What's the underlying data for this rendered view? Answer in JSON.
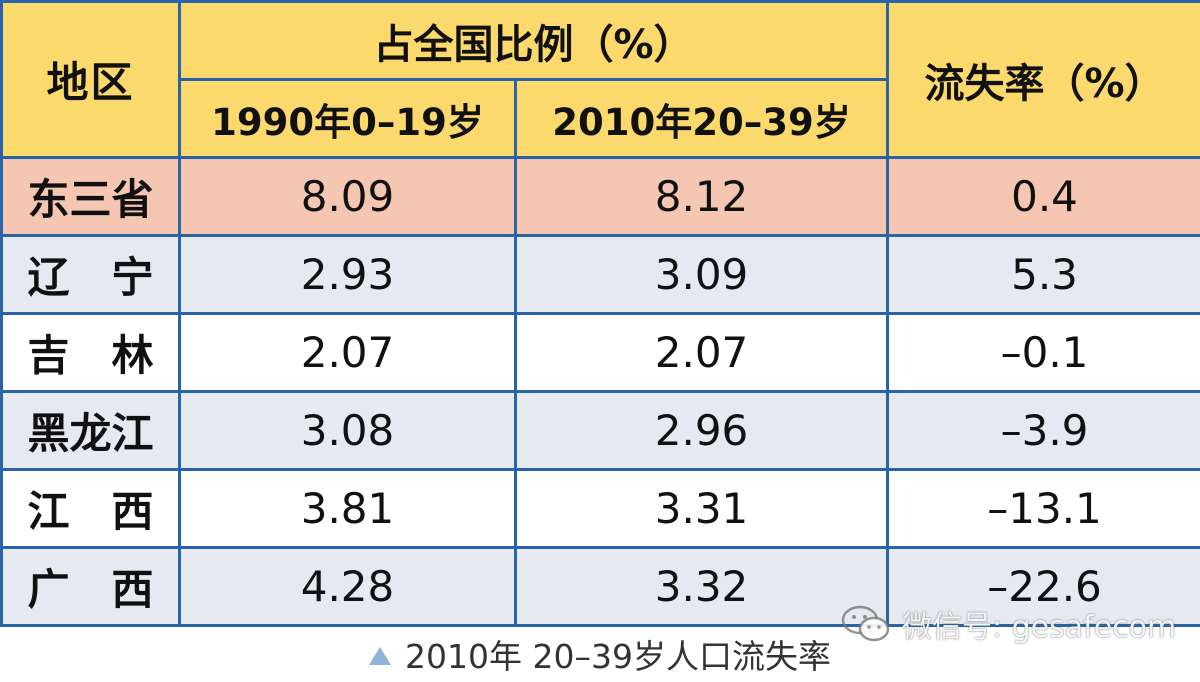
{
  "chart_data": {
    "type": "table",
    "header": {
      "region": "地区",
      "group": "占全国比例（%）",
      "col_1990": "1990年0–19岁",
      "col_2010": "2010年20–39岁",
      "loss": "流失率（%）"
    },
    "rows": [
      {
        "region": "东三省",
        "share_1990": "8.09",
        "share_2010": "8.12",
        "loss_rate": "0.4"
      },
      {
        "region": "辽　宁",
        "share_1990": "2.93",
        "share_2010": "3.09",
        "loss_rate": "5.3"
      },
      {
        "region": "吉　林",
        "share_1990": "2.07",
        "share_2010": "2.07",
        "loss_rate": "–0.1"
      },
      {
        "region": "黑龙江",
        "share_1990": "3.08",
        "share_2010": "2.96",
        "loss_rate": "–3.9"
      },
      {
        "region": "江　西",
        "share_1990": "3.81",
        "share_2010": "3.31",
        "loss_rate": "–13.1"
      },
      {
        "region": "广　西",
        "share_1990": "4.28",
        "share_2010": "3.32",
        "loss_rate": "–22.6"
      }
    ],
    "caption": "2010年 20–39岁人口流失率"
  },
  "colors": {
    "header_bg": "#fcd96c",
    "highlight_row_bg": "#f5c6b2",
    "alt_row_bg": "#e6e9ef",
    "border": "#2a63a6"
  },
  "watermark": {
    "icon": "wechat-icon",
    "text": "微信号: gesafecom"
  }
}
